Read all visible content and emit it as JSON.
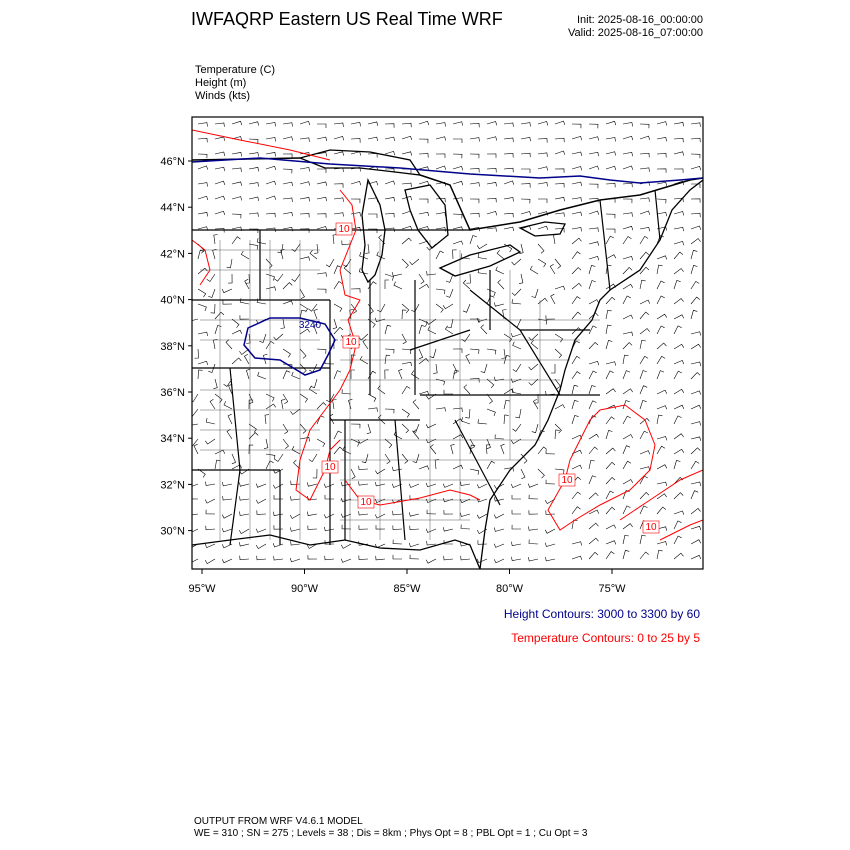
{
  "header": {
    "title": "IWFAQRP Eastern US Real Time WRF",
    "init": "Init: 2025-08-16_00:00:00",
    "valid": "Valid: 2025-08-16_07:00:00"
  },
  "fields": [
    "Temperature   (C)",
    "Height   (m)",
    "Winds   (kts)"
  ],
  "map": {
    "lat_ticks": [
      {
        "value": 46,
        "label": "46°N"
      },
      {
        "value": 44,
        "label": "44°N"
      },
      {
        "value": 42,
        "label": "42°N"
      },
      {
        "value": 40,
        "label": "40°N"
      },
      {
        "value": 38,
        "label": "38°N"
      },
      {
        "value": 36,
        "label": "36°N"
      },
      {
        "value": 34,
        "label": "34°N"
      },
      {
        "value": 32,
        "label": "32°N"
      },
      {
        "value": 30,
        "label": "30°N"
      }
    ],
    "lon_ticks": [
      {
        "value": -95,
        "label": "95°W"
      },
      {
        "value": -90,
        "label": "90°W"
      },
      {
        "value": -85,
        "label": "85°W"
      },
      {
        "value": -80,
        "label": "80°W"
      },
      {
        "value": -75,
        "label": "75°W"
      }
    ],
    "contour_labels": {
      "height": [
        "3240"
      ],
      "temperature": [
        "10",
        "10",
        "10",
        "10",
        "10",
        "10"
      ]
    },
    "colors": {
      "height_contour": "#00008b",
      "temperature_contour": "#ff0000",
      "map_lines": "#000000"
    }
  },
  "legend": {
    "height": "Height Contours: 3000 to 3300 by 60",
    "temperature": "Temperature Contours: 0 to 25 by 5"
  },
  "footer": {
    "model": "OUTPUT FROM WRF V4.6.1 MODEL",
    "config": "WE = 310 ; SN = 275 ; Levels = 38 ; Dis = 8km ; Phys Opt = 8 ; PBL Opt = 1 ; Cu Opt = 3"
  }
}
